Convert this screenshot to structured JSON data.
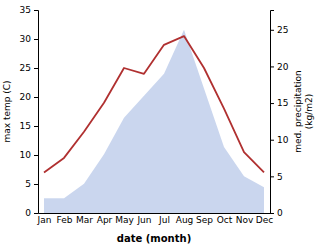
{
  "chart_data": {
    "type": "line",
    "categories": [
      "Jan",
      "Feb",
      "Mar",
      "Apr",
      "May",
      "Jun",
      "Jul",
      "Aug",
      "Sep",
      "Oct",
      "Nov",
      "Dec"
    ],
    "xlabel": "date (month)",
    "ylabel": "max temp (C)",
    "y2label": "med. precipitation\n(kg/m2)",
    "ylim": [
      0,
      35
    ],
    "yticks": [
      0,
      5,
      10,
      15,
      20,
      25,
      30,
      35
    ],
    "y2lim": [
      0,
      27.7
    ],
    "y2ticks": [
      0,
      5,
      10,
      15,
      20,
      25
    ],
    "grid": false,
    "series": [
      {
        "type": "area",
        "axis": "y2",
        "color": "#b8c8e8",
        "values": [
          2,
          2,
          4,
          8,
          13,
          16,
          19,
          25,
          17,
          9,
          5,
          3.5
        ]
      },
      {
        "type": "line",
        "color": "#b03030",
        "values": [
          7,
          9.5,
          14,
          19,
          25,
          24,
          29,
          30.5,
          25,
          18,
          10.5,
          7
        ]
      }
    ]
  }
}
